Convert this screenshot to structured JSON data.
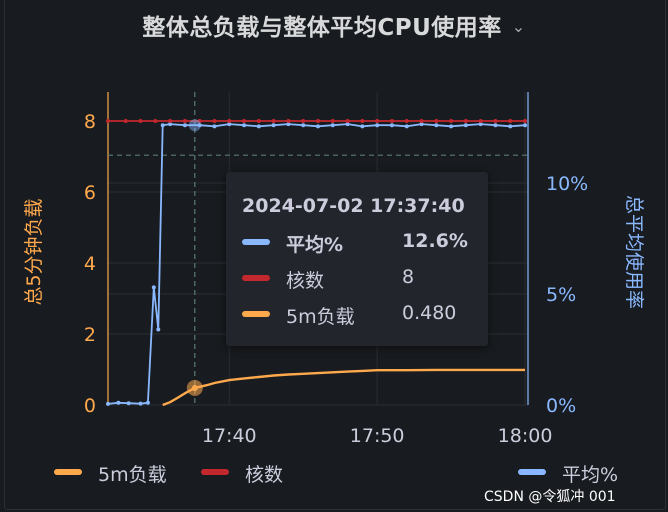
{
  "panel": {
    "title": "整体总负载与整体平均CPU使用率",
    "menu_icon": "chevron-down-icon"
  },
  "chart_data": {
    "type": "line",
    "title": "整体总负载与整体平均CPU使用率",
    "left_axis": {
      "label": "总5分钟负载",
      "ticks": [
        "0",
        "2",
        "4",
        "6",
        "8"
      ],
      "range": [
        0,
        8
      ],
      "color": "#ffa94d"
    },
    "right_axis": {
      "label": "总平均使用率",
      "ticks": [
        "0%",
        "5%",
        "10%"
      ],
      "range": [
        0,
        12.7
      ],
      "unit": "%",
      "color": "#8ab8ff"
    },
    "x_axis": {
      "ticks": [
        "17:40",
        "17:50",
        "18:00"
      ],
      "tick_minutes": [
        40,
        50,
        60
      ],
      "range_minutes": [
        31.8,
        60.2
      ]
    },
    "threshold_line": {
      "axis": "right",
      "value": 11.25,
      "style": "dashed"
    },
    "series": [
      {
        "name": "平均%",
        "axis": "right",
        "color": "#8ab8ff",
        "x": [
          31.8,
          32.5,
          33.2,
          34.0,
          34.5,
          34.9,
          35.2,
          35.5,
          36.0,
          37.0,
          38.0,
          39.0,
          40.0,
          41.0,
          42.0,
          43.0,
          44.0,
          45.0,
          46.0,
          47.0,
          48.0,
          49.0,
          50.0,
          51.0,
          52.0,
          53.0,
          54.0,
          55.0,
          56.0,
          57.0,
          58.0,
          59.0,
          60.0
        ],
        "values": [
          0.05,
          0.1,
          0.08,
          0.06,
          0.1,
          5.3,
          3.4,
          12.6,
          12.65,
          12.6,
          12.6,
          12.55,
          12.65,
          12.6,
          12.55,
          12.6,
          12.65,
          12.6,
          12.55,
          12.6,
          12.65,
          12.55,
          12.6,
          12.6,
          12.55,
          12.65,
          12.6,
          12.55,
          12.6,
          12.65,
          12.6,
          12.55,
          12.6
        ]
      },
      {
        "name": "核数",
        "axis": "left",
        "color": "#c4282f",
        "x": [
          31.8,
          33,
          34,
          35,
          36,
          37,
          38,
          39,
          40,
          41,
          42,
          43,
          44,
          45,
          46,
          47,
          48,
          49,
          50,
          51,
          52,
          53,
          54,
          55,
          56,
          57,
          58,
          59,
          60
        ],
        "values": [
          8,
          8,
          8,
          8,
          8,
          8,
          8,
          8,
          8,
          8,
          8,
          8,
          8,
          8,
          8,
          8,
          8,
          8,
          8,
          8,
          8,
          8,
          8,
          8,
          8,
          8,
          8,
          8,
          8
        ]
      },
      {
        "name": "5m负载",
        "axis": "left",
        "color": "#ffa94d",
        "x": [
          35.5,
          36.0,
          36.5,
          37.0,
          37.67,
          38.5,
          39.0,
          40.0,
          41.0,
          42.0,
          43.0,
          44.0,
          45.0,
          46.0,
          47.0,
          48.0,
          49.0,
          50.0,
          52.0,
          54.0,
          56.0,
          58.0,
          60.0
        ],
        "values": [
          0.0,
          0.08,
          0.2,
          0.33,
          0.48,
          0.56,
          0.62,
          0.7,
          0.75,
          0.79,
          0.83,
          0.86,
          0.88,
          0.9,
          0.92,
          0.94,
          0.96,
          0.98,
          0.98,
          0.99,
          0.99,
          0.99,
          0.99
        ]
      }
    ],
    "hover": {
      "time": "2024-07-02 17:37:40",
      "x_minutes": 37.67,
      "rows": [
        {
          "name": "平均%",
          "value": "12.6%",
          "color": "#8ab8ff"
        },
        {
          "name": "核数",
          "value": "8",
          "color": "#c4282f"
        },
        {
          "name": "5m负载",
          "value": "0.480",
          "color": "#ffa94d"
        }
      ]
    },
    "legend": [
      {
        "name": "5m负载",
        "color": "#ffa94d"
      },
      {
        "name": "核数",
        "color": "#c4282f"
      },
      {
        "name": "平均%",
        "color": "#8ab8ff"
      }
    ]
  },
  "watermark": "CSDN @令狐冲 001"
}
